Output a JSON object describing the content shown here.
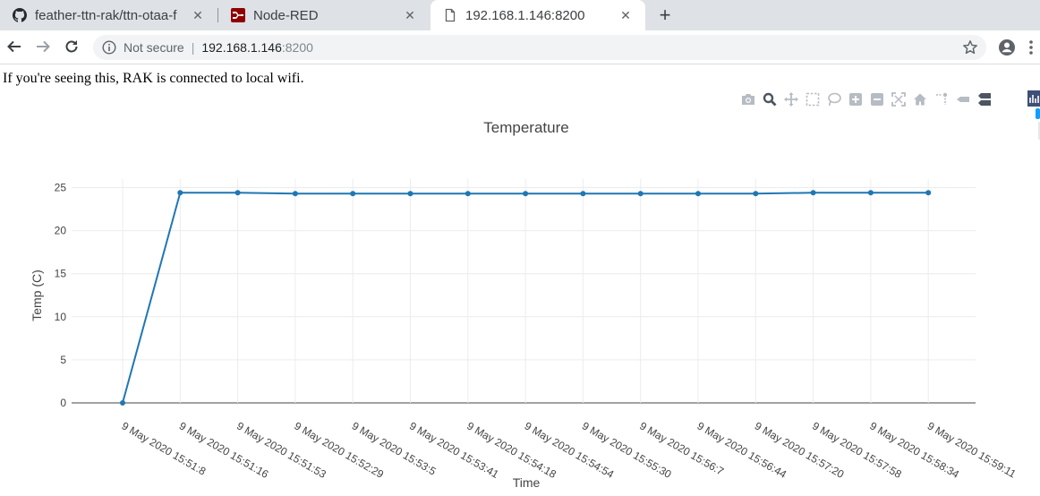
{
  "browser": {
    "tabs": [
      {
        "title": "feather-ttn-rak/ttn-otaa-f",
        "favicon": "github-icon",
        "active": false
      },
      {
        "title": "Node-RED",
        "favicon": "node-red-icon",
        "active": false
      },
      {
        "title": "192.168.1.146:8200",
        "favicon": "page-icon",
        "active": true
      }
    ],
    "close_glyph": "✕",
    "new_tab_glyph": "+",
    "address": {
      "security_label": "Not secure",
      "separator": "|",
      "host": "192.168.1.146",
      "port": ":8200"
    }
  },
  "page": {
    "message": "If you're seeing this, RAK is connected to local wifi."
  },
  "modebar": [
    "camera-icon",
    "zoom-icon",
    "pan-icon",
    "box-select-icon",
    "lasso-select-icon",
    "zoom-in-icon",
    "zoom-out-icon",
    "autoscale-icon",
    "reset-axes-icon",
    "spike-lines-icon",
    "hover-closest-icon",
    "hover-compare-icon",
    "plotly-logo-icon"
  ],
  "chart_data": {
    "type": "line",
    "title": "Temperature",
    "xlabel": "Time",
    "ylabel": "Temp (C)",
    "ylim": [
      0,
      25
    ],
    "y_ticks": [
      0,
      5,
      10,
      15,
      20,
      25
    ],
    "grid": true,
    "line_color": "#1f77b4",
    "categories": [
      "9 May 2020 15:51:8",
      "9 May 2020 15:51:16",
      "9 May 2020 15:51:53",
      "9 May 2020 15:52:29",
      "9 May 2020 15:53:5",
      "9 May 2020 15:53:41",
      "9 May 2020 15:54:18",
      "9 May 2020 15:54:54",
      "9 May 2020 15:55:30",
      "9 May 2020 15:56:7",
      "9 May 2020 15:56:44",
      "9 May 2020 15:57:20",
      "9 May 2020 15:57:58",
      "9 May 2020 15:58:34",
      "9 May 2020 15:59:11"
    ],
    "values": [
      0,
      24.4,
      24.4,
      24.3,
      24.3,
      24.3,
      24.3,
      24.3,
      24.3,
      24.3,
      24.3,
      24.3,
      24.4,
      24.4,
      24.4
    ]
  }
}
